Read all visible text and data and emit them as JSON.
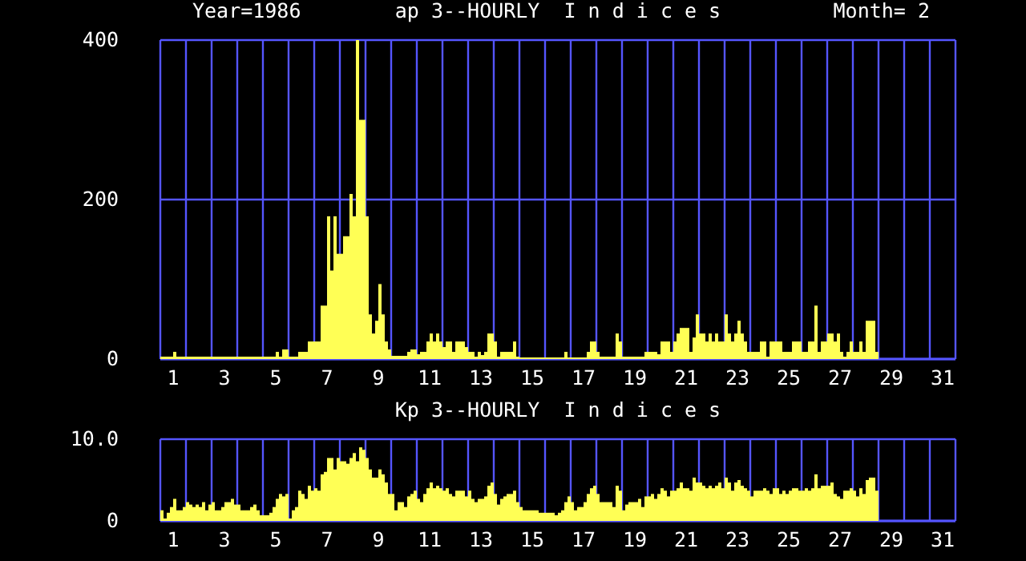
{
  "chart_data": [
    {
      "type": "bar",
      "title": "ap 3--HOURLY  I n d i c e s",
      "annotations": [
        "Year=1986",
        "Month= 2"
      ],
      "x": [
        1,
        1.125,
        1.25,
        1.375,
        1.5,
        1.625,
        1.75,
        1.875,
        2,
        2.125,
        2.25,
        2.375,
        2.5,
        2.625,
        2.75,
        2.875,
        3,
        3.125,
        3.25,
        3.375,
        3.5,
        3.625,
        3.75,
        3.875,
        4,
        4.125,
        4.25,
        4.375,
        4.5,
        4.625,
        4.75,
        4.875,
        5,
        5.125,
        5.25,
        5.375,
        5.5,
        5.625,
        5.75,
        5.875,
        6,
        6.125,
        6.25,
        6.375,
        6.5,
        6.625,
        6.75,
        6.875,
        7,
        7.125,
        7.25,
        7.375,
        7.5,
        7.625,
        7.75,
        7.875,
        8,
        8.125,
        8.25,
        8.375,
        8.5,
        8.625,
        8.75,
        8.875,
        9,
        9.125,
        9.25,
        9.375,
        9.5,
        9.625,
        9.75,
        9.875,
        10,
        10.125,
        10.25,
        10.375,
        10.5,
        10.625,
        10.75,
        10.875,
        11,
        11.125,
        11.25,
        11.375,
        11.5,
        11.625,
        11.75,
        11.875,
        12,
        12.125,
        12.25,
        12.375,
        12.5,
        12.625,
        12.75,
        12.875,
        13,
        13.125,
        13.25,
        13.375,
        13.5,
        13.625,
        13.75,
        13.875,
        14,
        14.125,
        14.25,
        14.375,
        14.5,
        14.625,
        14.75,
        14.875,
        15,
        15.125,
        15.25,
        15.375,
        15.5,
        15.625,
        15.75,
        15.875,
        16,
        16.125,
        16.25,
        16.375,
        16.5,
        16.625,
        16.75,
        16.875,
        17,
        17.125,
        17.25,
        17.375,
        17.5,
        17.625,
        17.75,
        17.875,
        18,
        18.125,
        18.25,
        18.375,
        18.5,
        18.625,
        18.75,
        18.875,
        19,
        19.125,
        19.25,
        19.375,
        19.5,
        19.625,
        19.75,
        19.875,
        20,
        20.125,
        20.25,
        20.375,
        20.5,
        20.625,
        20.75,
        20.875,
        21,
        21.125,
        21.25,
        21.375,
        21.5,
        21.625,
        21.75,
        21.875,
        22,
        22.125,
        22.25,
        22.375,
        22.5,
        22.625,
        22.75,
        22.875,
        23,
        23.125,
        23.25,
        23.375,
        23.5,
        23.625,
        23.75,
        23.875,
        24,
        24.125,
        24.25,
        24.375,
        24.5,
        24.625,
        24.75,
        24.875,
        25,
        25.125,
        25.25,
        25.375,
        25.5,
        25.625,
        25.75,
        25.875,
        26,
        26.125,
        26.25,
        26.375,
        26.5,
        26.625,
        26.75,
        26.875,
        27,
        27.125,
        27.25,
        27.375,
        27.5,
        27.625,
        27.75,
        27.875,
        28,
        28.125,
        28.25,
        28.375,
        28.5,
        28.625,
        28.75,
        28.875
      ],
      "values": [
        3,
        3,
        3,
        3,
        9,
        3,
        3,
        3,
        3,
        3,
        3,
        3,
        3,
        3,
        3,
        3,
        3,
        3,
        3,
        3,
        3,
        3,
        3,
        3,
        3,
        3,
        3,
        3,
        3,
        3,
        3,
        3,
        3,
        3,
        3,
        3,
        9,
        3,
        12,
        12,
        3,
        3,
        3,
        9,
        9,
        9,
        22,
        22,
        22,
        22,
        67,
        67,
        179,
        111,
        179,
        132,
        132,
        154,
        154,
        207,
        179,
        400,
        300,
        300,
        179,
        56,
        32,
        48,
        94,
        56,
        22,
        12,
        4,
        4,
        4,
        4,
        4,
        9,
        12,
        12,
        6,
        9,
        9,
        22,
        32,
        22,
        32,
        22,
        15,
        22,
        22,
        9,
        22,
        22,
        22,
        15,
        9,
        9,
        3,
        9,
        5,
        9,
        32,
        32,
        22,
        3,
        9,
        9,
        9,
        9,
        22,
        3,
        2,
        2,
        2,
        2,
        2,
        2,
        2,
        2,
        2,
        2,
        2,
        2,
        2,
        2,
        9,
        2,
        2,
        2,
        2,
        2,
        2,
        9,
        22,
        22,
        9,
        3,
        3,
        3,
        3,
        3,
        32,
        22,
        3,
        3,
        3,
        3,
        3,
        3,
        3,
        9,
        9,
        9,
        9,
        6,
        22,
        22,
        22,
        9,
        22,
        32,
        39,
        39,
        39,
        9,
        27,
        56,
        32,
        32,
        22,
        32,
        22,
        32,
        22,
        22,
        56,
        32,
        22,
        32,
        48,
        32,
        22,
        9,
        9,
        9,
        9,
        22,
        22,
        3,
        22,
        22,
        22,
        22,
        9,
        9,
        9,
        22,
        22,
        22,
        9,
        9,
        22,
        22,
        67,
        9,
        22,
        22,
        32,
        32,
        22,
        32,
        9,
        3,
        9,
        22,
        9,
        9,
        22,
        9,
        48,
        48,
        48,
        9
      ],
      "color": "#ffff55",
      "xlim": [
        1,
        32
      ],
      "xticks": [
        {
          "value": 1,
          "label": null
        },
        {
          "value": 1.5,
          "label": "1"
        },
        {
          "value": 2,
          "label": null
        },
        {
          "value": 3,
          "label": null
        },
        {
          "value": 3.5,
          "label": "3"
        },
        {
          "value": 4,
          "label": null
        },
        {
          "value": 5,
          "label": null
        },
        {
          "value": 5.5,
          "label": "5"
        },
        {
          "value": 6,
          "label": null
        },
        {
          "value": 7,
          "label": null
        },
        {
          "value": 7.5,
          "label": "7"
        },
        {
          "value": 8,
          "label": null
        },
        {
          "value": 9,
          "label": null
        },
        {
          "value": 9.5,
          "label": "9"
        },
        {
          "value": 10,
          "label": null
        },
        {
          "value": 11,
          "label": null
        },
        {
          "value": 11.5,
          "label": "11"
        },
        {
          "value": 12,
          "label": null
        },
        {
          "value": 13,
          "label": null
        },
        {
          "value": 13.5,
          "label": "13"
        },
        {
          "value": 14,
          "label": null
        },
        {
          "value": 15,
          "label": null
        },
        {
          "value": 15.5,
          "label": "15"
        },
        {
          "value": 16,
          "label": null
        },
        {
          "value": 17,
          "label": null
        },
        {
          "value": 17.5,
          "label": "17"
        },
        {
          "value": 18,
          "label": null
        },
        {
          "value": 19,
          "label": null
        },
        {
          "value": 19.5,
          "label": "19"
        },
        {
          "value": 20,
          "label": null
        },
        {
          "value": 21,
          "label": null
        },
        {
          "value": 21.5,
          "label": "21"
        },
        {
          "value": 22,
          "label": null
        },
        {
          "value": 23,
          "label": null
        },
        {
          "value": 23.5,
          "label": "23"
        },
        {
          "value": 24,
          "label": null
        },
        {
          "value": 25,
          "label": null
        },
        {
          "value": 25.5,
          "label": "25"
        },
        {
          "value": 26,
          "label": null
        },
        {
          "value": 27,
          "label": null
        },
        {
          "value": 27.5,
          "label": "27"
        },
        {
          "value": 28,
          "label": null
        },
        {
          "value": 29,
          "label": null
        },
        {
          "value": 29.5,
          "label": "29"
        },
        {
          "value": 30,
          "label": null
        },
        {
          "value": 31,
          "label": null
        },
        {
          "value": 31.5,
          "label": "31"
        },
        {
          "value": 32,
          "label": null
        }
      ],
      "ylim": [
        0,
        400
      ],
      "yticks": [
        0,
        200,
        400
      ],
      "grid": true
    },
    {
      "type": "bar",
      "title": "Kp 3--HOURLY  I n d i c e s",
      "x": [
        1,
        1.125,
        1.25,
        1.375,
        1.5,
        1.625,
        1.75,
        1.875,
        2,
        2.125,
        2.25,
        2.375,
        2.5,
        2.625,
        2.75,
        2.875,
        3,
        3.125,
        3.25,
        3.375,
        3.5,
        3.625,
        3.75,
        3.875,
        4,
        4.125,
        4.25,
        4.375,
        4.5,
        4.625,
        4.75,
        4.875,
        5,
        5.125,
        5.25,
        5.375,
        5.5,
        5.625,
        5.75,
        5.875,
        6,
        6.125,
        6.25,
        6.375,
        6.5,
        6.625,
        6.75,
        6.875,
        7,
        7.125,
        7.25,
        7.375,
        7.5,
        7.625,
        7.75,
        7.875,
        8,
        8.125,
        8.25,
        8.375,
        8.5,
        8.625,
        8.75,
        8.875,
        9,
        9.125,
        9.25,
        9.375,
        9.5,
        9.625,
        9.75,
        9.875,
        10,
        10.125,
        10.25,
        10.375,
        10.5,
        10.625,
        10.75,
        10.875,
        11,
        11.125,
        11.25,
        11.375,
        11.5,
        11.625,
        11.75,
        11.875,
        12,
        12.125,
        12.25,
        12.375,
        12.5,
        12.625,
        12.75,
        12.875,
        13,
        13.125,
        13.25,
        13.375,
        13.5,
        13.625,
        13.75,
        13.875,
        14,
        14.125,
        14.25,
        14.375,
        14.5,
        14.625,
        14.75,
        14.875,
        15,
        15.125,
        15.25,
        15.375,
        15.5,
        15.625,
        15.75,
        15.875,
        16,
        16.125,
        16.25,
        16.375,
        16.5,
        16.625,
        16.75,
        16.875,
        17,
        17.125,
        17.25,
        17.375,
        17.5,
        17.625,
        17.75,
        17.875,
        18,
        18.125,
        18.25,
        18.375,
        18.5,
        18.625,
        18.75,
        18.875,
        19,
        19.125,
        19.25,
        19.375,
        19.5,
        19.625,
        19.75,
        19.875,
        20,
        20.125,
        20.25,
        20.375,
        20.5,
        20.625,
        20.75,
        20.875,
        21,
        21.125,
        21.25,
        21.375,
        21.5,
        21.625,
        21.75,
        21.875,
        22,
        22.125,
        22.25,
        22.375,
        22.5,
        22.625,
        22.75,
        22.875,
        23,
        23.125,
        23.25,
        23.375,
        23.5,
        23.625,
        23.75,
        23.875,
        24,
        24.125,
        24.25,
        24.375,
        24.5,
        24.625,
        24.75,
        24.875,
        25,
        25.125,
        25.25,
        25.375,
        25.5,
        25.625,
        25.75,
        25.875,
        26,
        26.125,
        26.25,
        26.375,
        26.5,
        26.625,
        26.75,
        26.875,
        27,
        27.125,
        27.25,
        27.375,
        27.5,
        27.625,
        27.75,
        27.875,
        28,
        28.125,
        28.25,
        28.375,
        28.5,
        28.625,
        28.75,
        28.875
      ],
      "values": [
        1.3,
        0.3,
        1.0,
        1.7,
        2.7,
        1.3,
        1.3,
        1.7,
        2.3,
        2.0,
        1.7,
        2.0,
        1.7,
        2.3,
        1.3,
        2.0,
        2.3,
        1.3,
        1.3,
        1.7,
        2.3,
        2.3,
        2.7,
        2.0,
        2.0,
        1.3,
        1.3,
        1.3,
        1.7,
        2.0,
        1.3,
        0.7,
        0.7,
        0.7,
        1.0,
        1.7,
        2.7,
        3.3,
        3.0,
        3.3,
        0.3,
        1.3,
        1.7,
        3.7,
        3.3,
        2.7,
        4.3,
        3.7,
        4.0,
        3.7,
        5.7,
        6.0,
        7.7,
        7.7,
        6.3,
        7.7,
        7.3,
        7.3,
        7.0,
        7.7,
        8.3,
        7.3,
        9.0,
        8.7,
        7.7,
        6.3,
        5.3,
        5.3,
        6.3,
        5.7,
        4.7,
        3.3,
        3.3,
        1.3,
        2.3,
        2.3,
        1.7,
        3.0,
        3.3,
        3.7,
        2.7,
        2.3,
        3.3,
        4.0,
        4.7,
        4.0,
        4.3,
        4.0,
        3.7,
        4.0,
        3.3,
        3.0,
        3.7,
        3.7,
        3.7,
        3.0,
        3.7,
        2.7,
        2.3,
        2.7,
        2.7,
        3.0,
        4.3,
        4.7,
        3.3,
        2.0,
        2.7,
        3.0,
        3.3,
        3.3,
        3.7,
        2.3,
        1.7,
        1.3,
        1.3,
        1.3,
        1.3,
        1.3,
        1.0,
        1.0,
        1.0,
        1.0,
        1.0,
        0.7,
        1.0,
        1.3,
        2.3,
        3.0,
        2.3,
        1.3,
        1.7,
        1.7,
        2.3,
        3.3,
        4.0,
        4.3,
        3.3,
        2.3,
        2.3,
        2.3,
        2.3,
        1.7,
        4.3,
        3.7,
        1.3,
        2.0,
        2.3,
        2.3,
        2.3,
        2.7,
        1.7,
        3.0,
        3.0,
        3.3,
        2.7,
        3.3,
        4.0,
        3.7,
        3.0,
        3.7,
        3.7,
        4.0,
        4.7,
        4.0,
        4.0,
        3.7,
        5.3,
        4.7,
        4.7,
        4.3,
        4.0,
        4.3,
        4.0,
        4.3,
        4.7,
        4.0,
        5.3,
        4.7,
        3.7,
        4.7,
        5.0,
        4.3,
        4.0,
        3.7,
        3.0,
        3.7,
        3.7,
        3.7,
        4.0,
        3.7,
        3.3,
        4.0,
        4.0,
        3.3,
        3.7,
        3.3,
        3.7,
        4.0,
        4.0,
        3.7,
        3.7,
        4.0,
        3.7,
        4.0,
        5.7,
        4.0,
        4.3,
        4.3,
        4.3,
        4.7,
        3.3,
        3.0,
        2.7,
        3.7,
        3.7,
        4.0,
        3.7,
        3.0,
        4.0,
        3.3,
        5.0,
        5.3,
        5.3,
        3.7
      ],
      "color": "#ffff55",
      "xlim": [
        1,
        32
      ],
      "xticks": [
        {
          "value": 1,
          "label": null
        },
        {
          "value": 1.5,
          "label": "1"
        },
        {
          "value": 2,
          "label": null
        },
        {
          "value": 3,
          "label": null
        },
        {
          "value": 3.5,
          "label": "3"
        },
        {
          "value": 4,
          "label": null
        },
        {
          "value": 5,
          "label": null
        },
        {
          "value": 5.5,
          "label": "5"
        },
        {
          "value": 6,
          "label": null
        },
        {
          "value": 7,
          "label": null
        },
        {
          "value": 7.5,
          "label": "7"
        },
        {
          "value": 8,
          "label": null
        },
        {
          "value": 9,
          "label": null
        },
        {
          "value": 9.5,
          "label": "9"
        },
        {
          "value": 10,
          "label": null
        },
        {
          "value": 11,
          "label": null
        },
        {
          "value": 11.5,
          "label": "11"
        },
        {
          "value": 12,
          "label": null
        },
        {
          "value": 13,
          "label": null
        },
        {
          "value": 13.5,
          "label": "13"
        },
        {
          "value": 14,
          "label": null
        },
        {
          "value": 15,
          "label": null
        },
        {
          "value": 15.5,
          "label": "15"
        },
        {
          "value": 16,
          "label": null
        },
        {
          "value": 17,
          "label": null
        },
        {
          "value": 17.5,
          "label": "17"
        },
        {
          "value": 18,
          "label": null
        },
        {
          "value": 19,
          "label": null
        },
        {
          "value": 19.5,
          "label": "19"
        },
        {
          "value": 20,
          "label": null
        },
        {
          "value": 21,
          "label": null
        },
        {
          "value": 21.5,
          "label": "21"
        },
        {
          "value": 22,
          "label": null
        },
        {
          "value": 23,
          "label": null
        },
        {
          "value": 23.5,
          "label": "23"
        },
        {
          "value": 24,
          "label": null
        },
        {
          "value": 25,
          "label": null
        },
        {
          "value": 25.5,
          "label": "25"
        },
        {
          "value": 26,
          "label": null
        },
        {
          "value": 27,
          "label": null
        },
        {
          "value": 27.5,
          "label": "27"
        },
        {
          "value": 28,
          "label": null
        },
        {
          "value": 29,
          "label": null
        },
        {
          "value": 29.5,
          "label": "29"
        },
        {
          "value": 30,
          "label": null
        },
        {
          "value": 31,
          "label": null
        },
        {
          "value": 31.5,
          "label": "31"
        },
        {
          "value": 32,
          "label": null
        }
      ],
      "ylim": [
        0,
        10
      ],
      "yticks": [
        0,
        {
          "value": 10,
          "label": "10.0"
        }
      ],
      "grid": true
    }
  ]
}
